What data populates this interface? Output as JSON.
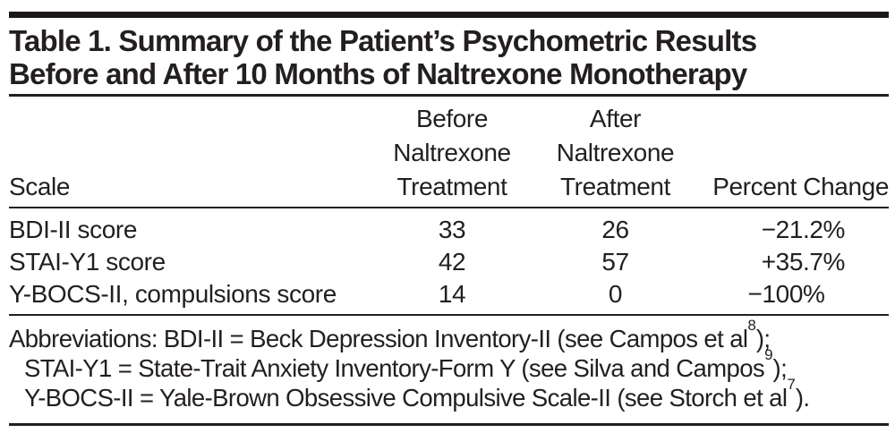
{
  "table": {
    "title_line1": "Table 1. Summary of the Patient’s Psychometric Results",
    "title_line2": "Before and After 10 Months of Naltrexone Monotherapy",
    "columns": {
      "scale": "Scale",
      "before": [
        "Before",
        "Naltrexone",
        "Treatment"
      ],
      "after": [
        "After",
        "Naltrexone",
        "Treatment"
      ],
      "percent": "Percent Change"
    },
    "rows": [
      {
        "scale": "BDI-II score",
        "before": "33",
        "after": "26",
        "percent": "−21.2%",
        "pct_main": "−21",
        "pct_tail": ".2%"
      },
      {
        "scale": "STAI-Y1 score",
        "before": "42",
        "after": "57",
        "percent": "+35.7%",
        "pct_main": "+35",
        "pct_tail": ".7%"
      },
      {
        "scale": "Y-BOCS-II, compulsions score",
        "before": "14",
        "after": "0",
        "percent": "−100%",
        "pct_main": "−100",
        "pct_tail": "%"
      }
    ]
  },
  "footnote": {
    "lines": [
      {
        "pre": "Abbreviations: BDI-II = Beck Depression Inventory-II (see Campos et al",
        "sup": "8",
        "post": ");"
      },
      {
        "pre": "STAI-Y1 = State-Trait Anxiety Inventory-Form Y (see Silva and Campos",
        "sup": "9",
        "post": ");"
      },
      {
        "pre": "Y-BOCS-II = Yale-Brown Obsessive Compulsive Scale-II (see Storch et al",
        "sup": "7",
        "post": ")."
      }
    ]
  },
  "colors": {
    "text": "#231f20",
    "rule": "#231f20",
    "top_bar": "#1c1819",
    "background": "#ffffff"
  }
}
